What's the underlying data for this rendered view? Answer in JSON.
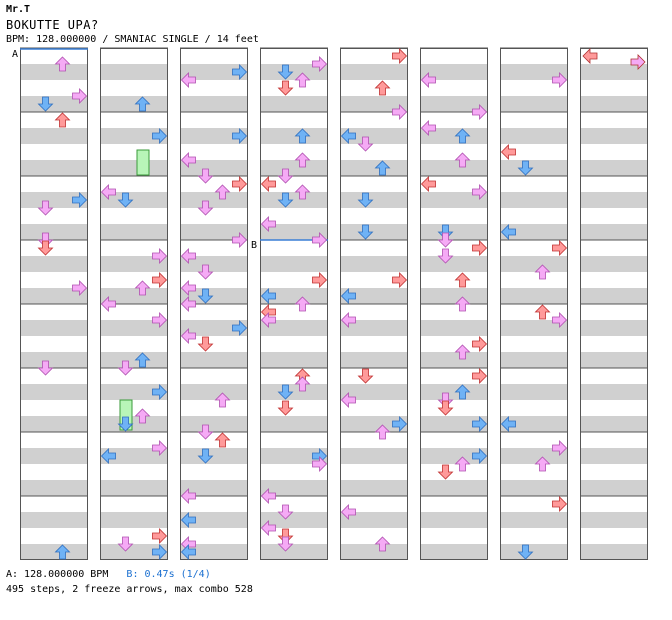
{
  "header": {
    "author": "Mr.T",
    "title": "BOKUTTE UPA?",
    "info": "BPM: 128.000000 / SMANIAC SINGLE / 14 feet"
  },
  "footer": {
    "bpm_label": "A: 128.000000 BPM",
    "stop_label": "B: 0.47s (1/4)",
    "stats": "495 steps, 2 freeze arrows, max combo 528"
  },
  "markers": {
    "a": "A",
    "b": "B"
  },
  "colors": {
    "quarter": "#ff9a9a",
    "eighth": "#6fb2f5",
    "sixteenth": "#f5aaf5",
    "freeze": "#b8f5b8",
    "stripe": "#d0d0d0",
    "border": "#555555"
  },
  "chart_data": {
    "type": "table",
    "columns": 8,
    "measures_per_column": 8,
    "lanes": [
      "left",
      "down",
      "up",
      "right"
    ],
    "total_steps": 495,
    "freeze_arrows": 2,
    "max_combo": 528
  }
}
